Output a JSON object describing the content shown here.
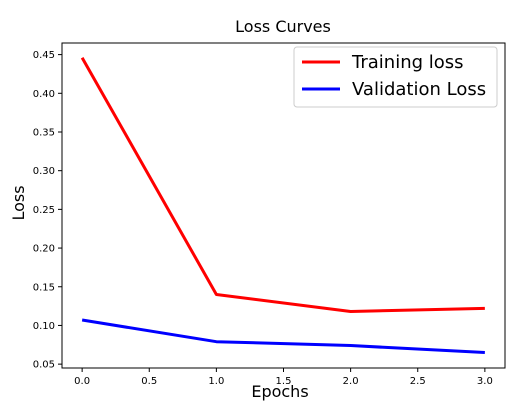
{
  "chart_data": {
    "type": "line",
    "title": "Loss Curves",
    "xlabel": "Epochs",
    "ylabel": "Loss",
    "xlim": [
      -0.15,
      3.15
    ],
    "ylim": [
      0.045,
      0.465
    ],
    "xticks": [
      0.0,
      0.5,
      1.0,
      1.5,
      2.0,
      2.5,
      3.0
    ],
    "xtick_labels": [
      "0.0",
      "0.5",
      "1.0",
      "1.5",
      "2.0",
      "2.5",
      "3.0"
    ],
    "yticks": [
      0.05,
      0.1,
      0.15,
      0.2,
      0.25,
      0.3,
      0.35,
      0.4,
      0.45
    ],
    "ytick_labels": [
      "0.05",
      "0.10",
      "0.15",
      "0.20",
      "0.25",
      "0.30",
      "0.35",
      "0.40",
      "0.45"
    ],
    "grid": false,
    "legend_position": "top-right",
    "x": [
      0,
      1,
      2,
      3
    ],
    "series": [
      {
        "name": "Training loss",
        "color": "#ff0000",
        "values": [
          0.446,
          0.14,
          0.118,
          0.122
        ]
      },
      {
        "name": "Validation Loss",
        "color": "#0000ff",
        "values": [
          0.107,
          0.079,
          0.074,
          0.065
        ]
      }
    ]
  }
}
